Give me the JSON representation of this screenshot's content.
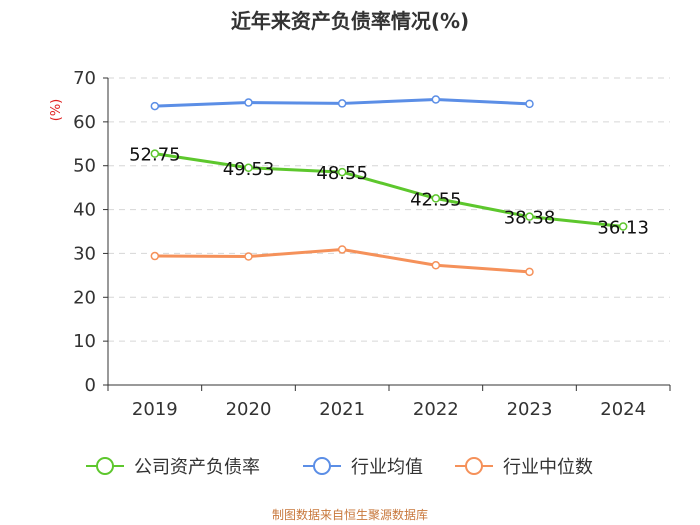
{
  "chart_data": {
    "type": "line",
    "title": "近年来资产负债率情况(%)",
    "ylabel": "(%)",
    "xlabel": "",
    "categories": [
      "2019",
      "2020",
      "2021",
      "2022",
      "2023",
      "2024"
    ],
    "ylim": [
      0,
      70
    ],
    "yticks": [
      0,
      10,
      20,
      30,
      40,
      50,
      60,
      70
    ],
    "grid": true,
    "legend_position": "bottom",
    "series": [
      {
        "name": "公司资产负债率",
        "color": "#5dc72d",
        "values": [
          52.75,
          49.53,
          48.55,
          42.55,
          38.38,
          36.13
        ],
        "labels": [
          "52.75",
          "49.53",
          "48.55",
          "42.55",
          "38.38",
          "36.13"
        ]
      },
      {
        "name": "行业均值",
        "color": "#5b8ee6",
        "values": [
          63.6,
          64.4,
          64.2,
          65.1,
          64.1,
          null
        ]
      },
      {
        "name": "行业中位数",
        "color": "#f5915a",
        "values": [
          29.4,
          29.3,
          30.9,
          27.3,
          25.8,
          null
        ]
      }
    ]
  },
  "footer": "制图数据来自恒生聚源数据库"
}
